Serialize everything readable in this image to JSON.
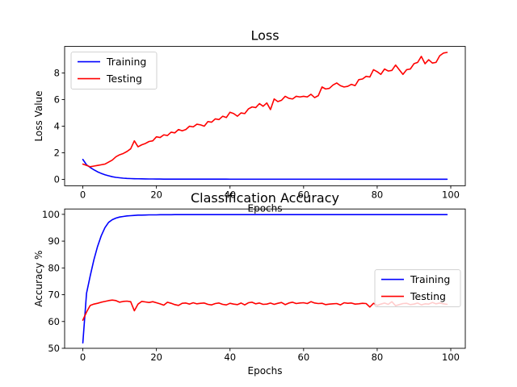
{
  "chart_data": [
    {
      "type": "line",
      "title": "Loss",
      "xlabel": "Epochs",
      "ylabel": "Loss Value",
      "xlim": [
        -4.95,
        103.95
      ],
      "ylim": [
        -0.48,
        10.0
      ],
      "xticks": [
        0,
        20,
        40,
        60,
        80,
        100
      ],
      "yticks": [
        0,
        2,
        4,
        6,
        8
      ],
      "grid": false,
      "legend": "upper left",
      "series": [
        {
          "name": "Training",
          "color": "#0000ff",
          "x": [
            0,
            1,
            2,
            3,
            4,
            5,
            6,
            7,
            8,
            9,
            10,
            11,
            12,
            13,
            14,
            15,
            16,
            17,
            18,
            19,
            20,
            21,
            22,
            23,
            24,
            25,
            26,
            27,
            28,
            29,
            30,
            31,
            32,
            33,
            34,
            35,
            36,
            37,
            38,
            39,
            40,
            41,
            42,
            43,
            44,
            45,
            46,
            47,
            48,
            49,
            50,
            51,
            52,
            53,
            54,
            55,
            56,
            57,
            58,
            59,
            60,
            61,
            62,
            63,
            64,
            65,
            66,
            67,
            68,
            69,
            70,
            71,
            72,
            73,
            74,
            75,
            76,
            77,
            78,
            79,
            80,
            81,
            82,
            83,
            84,
            85,
            86,
            87,
            88,
            89,
            90,
            91,
            92,
            93,
            94,
            95,
            96,
            97,
            98,
            99
          ],
          "y": [
            1.5,
            1.1,
            0.9,
            0.72,
            0.57,
            0.45,
            0.35,
            0.27,
            0.2,
            0.15,
            0.12,
            0.09,
            0.07,
            0.06,
            0.05,
            0.045,
            0.04,
            0.035,
            0.03,
            0.03,
            0.025,
            0.025,
            0.02,
            0.02,
            0.02,
            0.02,
            0.02,
            0.018,
            0.018,
            0.018,
            0.018,
            0.017,
            0.017,
            0.017,
            0.017,
            0.016,
            0.016,
            0.016,
            0.016,
            0.016,
            0.015,
            0.015,
            0.015,
            0.015,
            0.015,
            0.015,
            0.015,
            0.015,
            0.015,
            0.015,
            0.015,
            0.014,
            0.014,
            0.014,
            0.014,
            0.014,
            0.014,
            0.014,
            0.014,
            0.014,
            0.014,
            0.014,
            0.014,
            0.014,
            0.014,
            0.014,
            0.014,
            0.014,
            0.014,
            0.014,
            0.013,
            0.013,
            0.013,
            0.013,
            0.013,
            0.013,
            0.013,
            0.013,
            0.013,
            0.013,
            0.013,
            0.013,
            0.013,
            0.013,
            0.013,
            0.013,
            0.013,
            0.013,
            0.013,
            0.013,
            0.013,
            0.013,
            0.013,
            0.013,
            0.013,
            0.013,
            0.013,
            0.013,
            0.013,
            0.013
          ]
        },
        {
          "name": "Testing",
          "color": "#ff0000",
          "x": [
            0,
            1,
            2,
            3,
            4,
            5,
            6,
            7,
            8,
            9,
            10,
            11,
            12,
            13,
            14,
            15,
            16,
            17,
            18,
            19,
            20,
            21,
            22,
            23,
            24,
            25,
            26,
            27,
            28,
            29,
            30,
            31,
            32,
            33,
            34,
            35,
            36,
            37,
            38,
            39,
            40,
            41,
            42,
            43,
            44,
            45,
            46,
            47,
            48,
            49,
            50,
            51,
            52,
            53,
            54,
            55,
            56,
            57,
            58,
            59,
            60,
            61,
            62,
            63,
            64,
            65,
            66,
            67,
            68,
            69,
            70,
            71,
            72,
            73,
            74,
            75,
            76,
            77,
            78,
            79,
            80,
            81,
            82,
            83,
            84,
            85,
            86,
            87,
            88,
            89,
            90,
            91,
            92,
            93,
            94,
            95,
            96,
            97,
            98,
            99
          ],
          "y": [
            1.15,
            1.05,
            0.95,
            1.0,
            1.05,
            1.1,
            1.15,
            1.3,
            1.45,
            1.7,
            1.85,
            1.95,
            2.1,
            2.3,
            2.9,
            2.45,
            2.6,
            2.7,
            2.85,
            2.9,
            3.2,
            3.15,
            3.35,
            3.3,
            3.55,
            3.5,
            3.75,
            3.65,
            3.75,
            4.0,
            3.95,
            4.15,
            4.1,
            4.0,
            4.35,
            4.3,
            4.55,
            4.5,
            4.75,
            4.65,
            5.05,
            4.95,
            4.75,
            5.0,
            4.95,
            5.3,
            5.45,
            5.4,
            5.7,
            5.5,
            5.75,
            5.25,
            6.05,
            5.85,
            5.95,
            6.25,
            6.1,
            6.05,
            6.25,
            6.2,
            6.25,
            6.2,
            6.4,
            6.15,
            6.3,
            6.95,
            6.8,
            6.85,
            7.1,
            7.25,
            7.05,
            6.95,
            7.0,
            7.15,
            7.05,
            7.5,
            7.55,
            7.75,
            7.7,
            8.25,
            8.1,
            7.9,
            8.3,
            8.15,
            8.2,
            8.6,
            8.25,
            7.9,
            8.25,
            8.3,
            8.7,
            8.8,
            9.25,
            8.7,
            9.0,
            8.75,
            8.8,
            9.3,
            9.5,
            9.55
          ]
        }
      ]
    },
    {
      "type": "line",
      "title": "Classification Accuracy",
      "xlabel": "Epochs",
      "ylabel": "Accuracy %",
      "xlim": [
        -4.95,
        103.95
      ],
      "ylim": [
        50,
        102
      ],
      "xticks": [
        0,
        20,
        40,
        60,
        80,
        100
      ],
      "yticks": [
        50,
        60,
        70,
        80,
        90,
        100
      ],
      "grid": false,
      "legend": "center right",
      "series": [
        {
          "name": "Training",
          "color": "#0000ff",
          "x": [
            0,
            1,
            2,
            3,
            4,
            5,
            6,
            7,
            8,
            9,
            10,
            11,
            12,
            13,
            14,
            15,
            16,
            17,
            18,
            19,
            20,
            21,
            22,
            23,
            24,
            25,
            26,
            27,
            28,
            29,
            30,
            31,
            32,
            33,
            34,
            35,
            36,
            37,
            38,
            39,
            40,
            41,
            42,
            43,
            44,
            45,
            46,
            47,
            48,
            49,
            50,
            51,
            52,
            53,
            54,
            55,
            56,
            57,
            58,
            59,
            60,
            61,
            62,
            63,
            64,
            65,
            66,
            67,
            68,
            69,
            70,
            71,
            72,
            73,
            74,
            75,
            76,
            77,
            78,
            79,
            80,
            81,
            82,
            83,
            84,
            85,
            86,
            87,
            88,
            89,
            90,
            91,
            92,
            93,
            94,
            95,
            96,
            97,
            98,
            99
          ],
          "y": [
            52,
            70.5,
            77,
            83,
            88,
            92,
            95,
            97,
            98,
            98.6,
            99,
            99.2,
            99.4,
            99.5,
            99.6,
            99.7,
            99.7,
            99.75,
            99.8,
            99.8,
            99.8,
            99.85,
            99.85,
            99.85,
            99.85,
            99.9,
            99.9,
            99.9,
            99.9,
            99.9,
            99.9,
            99.9,
            99.9,
            99.9,
            99.9,
            99.9,
            99.9,
            99.9,
            99.9,
            99.9,
            99.9,
            99.9,
            99.9,
            99.9,
            99.9,
            99.9,
            99.9,
            99.9,
            99.9,
            99.9,
            99.9,
            99.9,
            99.9,
            99.9,
            99.9,
            99.9,
            99.9,
            99.9,
            99.9,
            99.9,
            99.9,
            99.9,
            99.9,
            99.9,
            99.9,
            99.9,
            99.9,
            99.9,
            99.9,
            99.9,
            99.9,
            99.9,
            99.9,
            99.9,
            99.9,
            99.9,
            99.9,
            99.9,
            99.9,
            99.9,
            99.9,
            99.9,
            99.9,
            99.9,
            99.9,
            99.9,
            99.9,
            99.9,
            99.9,
            99.9,
            99.9,
            99.9,
            99.9,
            99.9,
            99.9,
            99.9,
            99.9,
            99.9,
            99.9,
            99.9
          ]
        },
        {
          "name": "Testing",
          "color": "#ff0000",
          "x": [
            0,
            1,
            2,
            3,
            4,
            5,
            6,
            7,
            8,
            9,
            10,
            11,
            12,
            13,
            14,
            15,
            16,
            17,
            18,
            19,
            20,
            21,
            22,
            23,
            24,
            25,
            26,
            27,
            28,
            29,
            30,
            31,
            32,
            33,
            34,
            35,
            36,
            37,
            38,
            39,
            40,
            41,
            42,
            43,
            44,
            45,
            46,
            47,
            48,
            49,
            50,
            51,
            52,
            53,
            54,
            55,
            56,
            57,
            58,
            59,
            60,
            61,
            62,
            63,
            64,
            65,
            66,
            67,
            68,
            69,
            70,
            71,
            72,
            73,
            74,
            75,
            76,
            77,
            78,
            79,
            80,
            81,
            82,
            83,
            84,
            85,
            86,
            87,
            88,
            89,
            90,
            91,
            92,
            93,
            94,
            95,
            96,
            97,
            98,
            99
          ],
          "y": [
            60.5,
            63.5,
            66,
            66.5,
            66.8,
            67.2,
            67.5,
            67.8,
            68,
            67.8,
            67.2,
            67.5,
            67.6,
            67.4,
            64,
            66.5,
            67.5,
            67.3,
            67.1,
            67.4,
            67,
            66.6,
            66.1,
            67.2,
            66.8,
            66.3,
            66,
            66.8,
            66.9,
            66.5,
            67,
            66.6,
            66.8,
            66.9,
            66.4,
            66.2,
            66.7,
            66.9,
            66.4,
            66.2,
            66.8,
            66.5,
            66.3,
            66.9,
            66.2,
            67,
            67.2,
            66.6,
            66.9,
            66.4,
            66.5,
            66.9,
            66.4,
            66.8,
            67.1,
            66.3,
            66.9,
            67.2,
            66.7,
            66.9,
            67,
            66.7,
            67.4,
            66.9,
            66.7,
            66.8,
            66.3,
            66.5,
            66.6,
            66.7,
            66.2,
            67,
            66.8,
            66.9,
            66.5,
            66.6,
            66.8,
            66.7,
            65.4,
            66.8,
            66,
            66.5,
            66.9,
            66.4,
            67.4,
            65.9,
            66.3,
            66.7,
            66.8,
            66.3,
            66.5,
            66.9,
            66.2,
            66.6,
            66.5,
            67.1,
            66.6,
            66.9,
            66.6,
            66.4
          ]
        }
      ]
    }
  ]
}
